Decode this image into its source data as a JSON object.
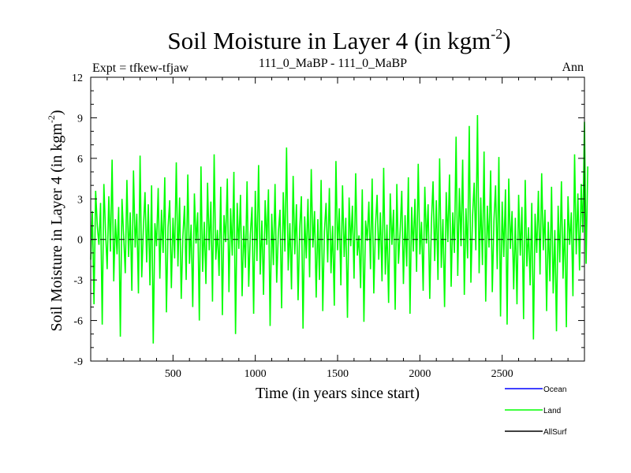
{
  "chart_data": {
    "type": "line",
    "title": "Soil Moisture in Layer 4 (in kgm",
    "title_sup": "-2",
    "title_close": ")",
    "expt_label": "Expt = tfkew-tfjaw",
    "subtitle": "111_0_MaBP - 111_0_MaBP",
    "season": "Ann",
    "xlabel": "Time (in years since start)",
    "ylabel": "Soil Moisture in Layer 4 (in kgm",
    "ylabel_sup": "-2",
    "ylabel_close": ")",
    "xlim": [
      0,
      3000
    ],
    "ylim": [
      -9,
      12
    ],
    "x_ticks": [
      500,
      1000,
      1500,
      2000,
      2500
    ],
    "y_ticks": [
      -9,
      -6,
      -3,
      0,
      3,
      6,
      9,
      12
    ],
    "zero_line": true,
    "grid": false,
    "legend_position": "bottom-right",
    "series": [
      {
        "name": "Ocean",
        "color": "#0000ff",
        "values": []
      },
      {
        "name": "Land",
        "color": "#00ff00",
        "x_start": 0,
        "x_step": 10,
        "values": [
          -1.5,
          2.1,
          -4.8,
          3.6,
          1.0,
          -0.4,
          2.7,
          -6.3,
          4.1,
          0.6,
          -2.2,
          3.2,
          -0.9,
          5.9,
          -3.1,
          1.5,
          -1.1,
          2.4,
          -7.2,
          3.0,
          0.3,
          -2.5,
          4.4,
          -1.3,
          2.0,
          -3.8,
          5.1,
          -0.6,
          1.9,
          -4.0,
          6.2,
          -2.8,
          0.8,
          3.5,
          -1.7,
          2.6,
          -3.4,
          4.0,
          -7.7,
          1.2,
          -0.5,
          3.8,
          -2.9,
          2.2,
          -1.0,
          4.6,
          -5.4,
          0.9,
          2.9,
          -3.6,
          1.6,
          -1.4,
          5.7,
          -2.0,
          3.1,
          -4.4,
          0.2,
          2.5,
          -3.0,
          4.8,
          -1.8,
          1.1,
          -5.0,
          3.4,
          -0.3,
          2.0,
          -6.0,
          5.4,
          -2.4,
          1.3,
          -3.3,
          4.2,
          -0.8,
          2.8,
          -4.6,
          6.3,
          -1.5,
          0.7,
          -2.7,
          3.9,
          -5.6,
          1.8,
          -0.2,
          4.5,
          -3.9,
          2.3,
          -1.2,
          5.0,
          -7.0,
          2.7,
          -0.7,
          3.3,
          -4.2,
          1.0,
          -2.1,
          4.3,
          -3.5,
          0.4,
          2.4,
          -5.5,
          3.6,
          -1.6,
          5.5,
          -2.6,
          1.4,
          -4.1,
          2.9,
          -0.4,
          3.7,
          -6.4,
          1.9,
          -1.9,
          4.1,
          -3.2,
          0.5,
          2.2,
          -5.1,
          3.5,
          -0.9,
          6.8,
          -2.3,
          1.2,
          -3.7,
          4.7,
          -1.1,
          2.6,
          -4.5,
          0.8,
          3.2,
          -6.6,
          1.7,
          -1.4,
          3.0,
          -2.8,
          5.2,
          -0.6,
          2.1,
          -4.3,
          1.5,
          -3.0,
          4.4,
          -5.3,
          0.6,
          2.7,
          -1.7,
          3.8,
          -2.5,
          1.0,
          -4.9,
          5.8,
          -0.8,
          2.3,
          -3.4,
          4.0,
          -1.3,
          1.6,
          -5.8,
          3.1,
          -0.5,
          2.5,
          -2.9,
          4.9,
          -1.2,
          0.3,
          -3.6,
          3.7,
          -6.1,
          1.4,
          -0.1,
          2.8,
          -2.2,
          4.5,
          -4.0,
          0.9,
          3.3,
          -1.5,
          2.0,
          -3.1,
          5.3,
          -2.6,
          1.1,
          -4.7,
          3.4,
          -0.4,
          2.2,
          -5.2,
          4.1,
          -1.8,
          0.6,
          3.6,
          -3.3,
          1.8,
          -2.0,
          4.6,
          -5.5,
          2.4,
          -0.9,
          3.0,
          -2.4,
          5.6,
          -1.1,
          1.3,
          -3.8,
          3.9,
          -0.3,
          2.6,
          -4.4,
          1.2,
          4.3,
          -1.6,
          2.9,
          -3.0,
          6.0,
          -2.1,
          1.5,
          -5.0,
          3.5,
          -0.2,
          4.8,
          -3.5,
          2.0,
          -1.0,
          7.6,
          -2.7,
          3.8,
          -0.5,
          5.9,
          -4.1,
          2.3,
          -1.4,
          8.4,
          -3.2,
          1.7,
          4.2,
          -0.8,
          9.2,
          -2.5,
          3.1,
          -1.9,
          6.5,
          -4.6,
          2.5,
          -0.6,
          5.1,
          -3.9,
          1.4,
          4.0,
          -2.2,
          6.1,
          -5.7,
          2.8,
          -1.3,
          3.7,
          -6.3,
          4.5,
          -0.7,
          2.1,
          -3.7,
          1.6,
          -4.8,
          3.3,
          -1.2,
          2.4,
          -5.9,
          4.4,
          -2.0,
          0.9,
          -3.4,
          2.7,
          -7.4,
          1.9,
          -1.0,
          3.6,
          -2.6,
          4.9,
          -0.8,
          2.2,
          -5.3,
          1.3,
          -3.1,
          3.9,
          -4.0,
          0.7,
          -6.8,
          2.5,
          -1.7,
          4.3,
          -2.9,
          1.5,
          -6.5,
          3.2,
          -0.4,
          2.0,
          -4.2,
          6.3,
          -1.1,
          3.4,
          -2.3,
          4.1,
          0.5,
          8.7,
          -1.8,
          5.4
        ]
      },
      {
        "name": "AllSurf",
        "color": "#000000",
        "values": []
      }
    ]
  }
}
